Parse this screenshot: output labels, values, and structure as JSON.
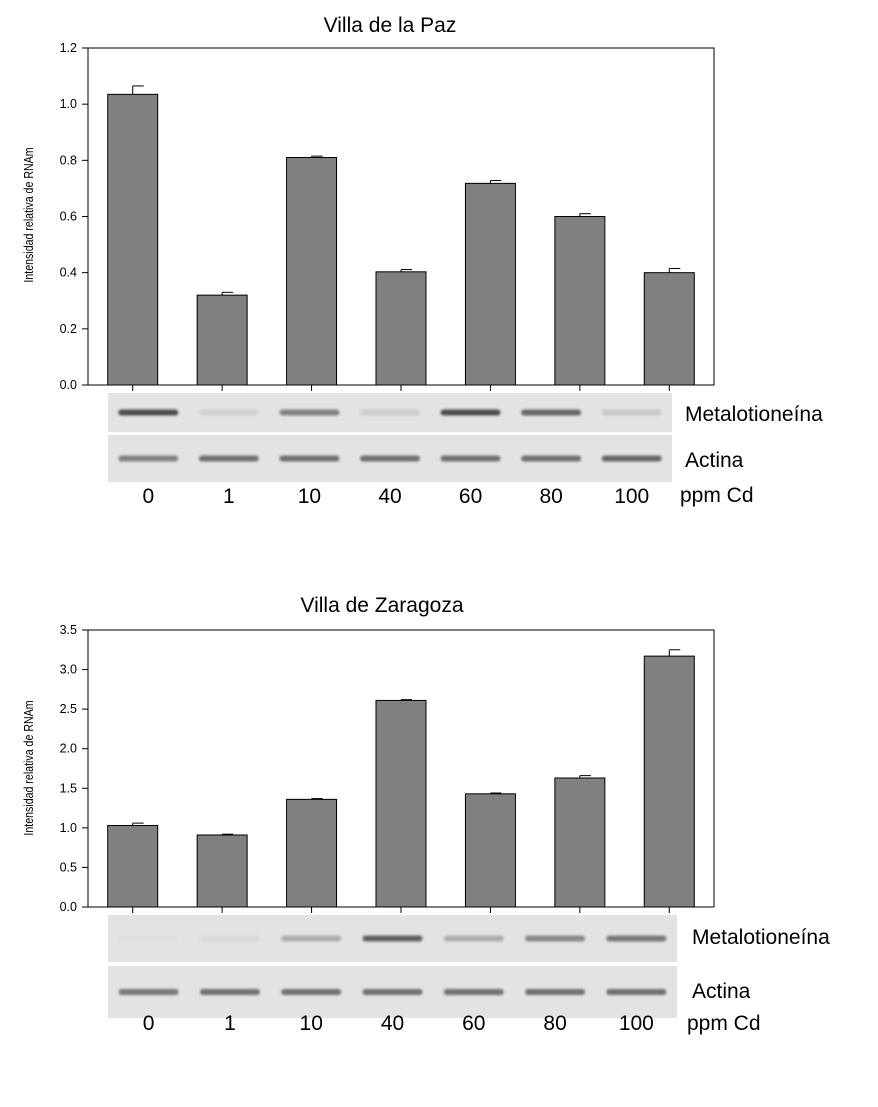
{
  "chart_data": [
    {
      "type": "bar",
      "title": "Villa de la Paz",
      "ylabel": "Intensidad relativa de RNAm",
      "categories": [
        "0",
        "1",
        "10",
        "40",
        "60",
        "80",
        "100"
      ],
      "category_unit": "ppm Cd",
      "values": [
        1.035,
        0.32,
        0.81,
        0.403,
        0.718,
        0.6,
        0.4
      ],
      "errors": [
        0.03,
        0.01,
        0.005,
        0.008,
        0.01,
        0.01,
        0.015
      ],
      "ylim": [
        0,
        1.2
      ],
      "yticks": [
        "0.0",
        "0.2",
        "0.4",
        "0.6",
        "0.8",
        "1.0",
        "1.2"
      ],
      "bar_color": "#808080",
      "gel": {
        "row_labels": [
          "Metalotioneína",
          "Actina"
        ],
        "metalotioneina_intensity": [
          0.85,
          0.1,
          0.55,
          0.12,
          0.85,
          0.7,
          0.15
        ],
        "actina_intensity": [
          0.55,
          0.65,
          0.65,
          0.65,
          0.65,
          0.65,
          0.7
        ]
      }
    },
    {
      "type": "bar",
      "title": "Villa de Zaragoza",
      "ylabel": "Intensidad relativa de RNAm",
      "categories": [
        "0",
        "1",
        "10",
        "40",
        "60",
        "80",
        "100"
      ],
      "category_unit": "ppm Cd",
      "values": [
        1.03,
        0.91,
        1.36,
        2.61,
        1.43,
        1.63,
        3.17
      ],
      "errors": [
        0.03,
        0.01,
        0.01,
        0.01,
        0.01,
        0.03,
        0.08
      ],
      "ylim": [
        0,
        3.5
      ],
      "yticks": [
        "0.0",
        "0.5",
        "1.0",
        "1.5",
        "2.0",
        "2.5",
        "3.0",
        "3.5"
      ],
      "bar_color": "#808080",
      "gel": {
        "row_labels": [
          "Metalotioneína",
          "Actina"
        ],
        "metalotioneina_intensity": [
          0.02,
          0.05,
          0.3,
          0.75,
          0.3,
          0.5,
          0.6
        ],
        "actina_intensity": [
          0.6,
          0.65,
          0.65,
          0.65,
          0.65,
          0.65,
          0.65
        ]
      }
    }
  ]
}
